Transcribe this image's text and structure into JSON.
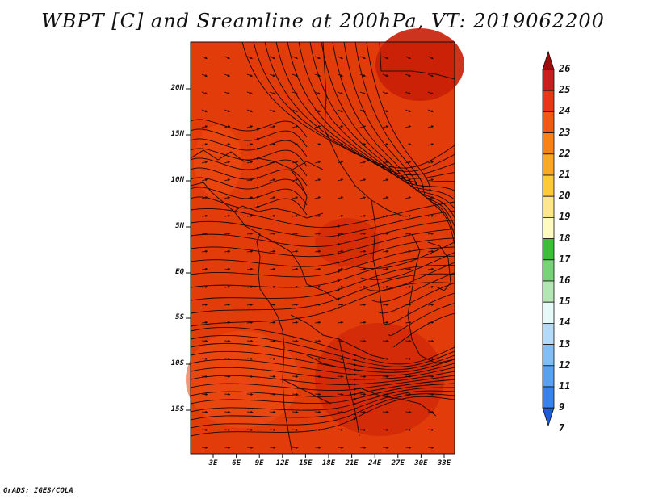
{
  "title": "WBPT [C] and Sreamline at 200hPa, VT: 2019062200",
  "footer": "GrADS: IGES/COLA",
  "map": {
    "lat_labels": [
      "20N",
      "15N",
      "10N",
      "5N",
      "EQ",
      "5S",
      "10S",
      "15S"
    ],
    "lon_labels": [
      "3E",
      "6E",
      "9E",
      "12E",
      "15E",
      "18E",
      "21E",
      "24E",
      "27E",
      "30E",
      "33E"
    ],
    "base_color": "#e23c0a",
    "warm_color": "#c81e07",
    "cool_color": "#f04e14",
    "coast_color": "#2a0a02",
    "streamline_color": "#1a0500"
  },
  "colorbar": {
    "levels": [
      "26",
      "25",
      "24",
      "23",
      "22",
      "21",
      "20",
      "19",
      "18",
      "17",
      "16",
      "15",
      "14",
      "13",
      "12",
      "11",
      "9",
      "7"
    ],
    "colors": [
      "#a50a0a",
      "#c81e1e",
      "#e8351c",
      "#f05a14",
      "#f6821a",
      "#faa628",
      "#fcc83c",
      "#fde68c",
      "#fefac0",
      "#3cbe3c",
      "#78d278",
      "#b4e6b4",
      "#e6f8f8",
      "#b4daf8",
      "#82bef4",
      "#5aa0ee",
      "#3c82e6",
      "#1e5adc"
    ]
  }
}
